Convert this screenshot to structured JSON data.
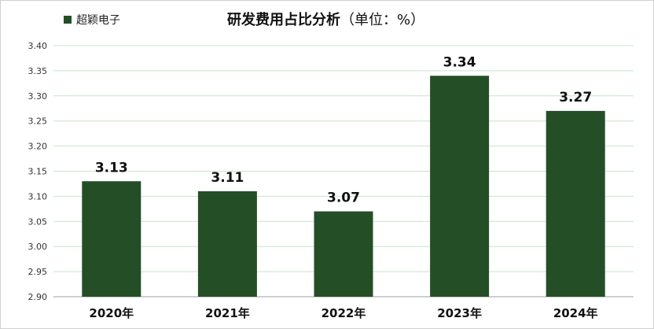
{
  "legend": {
    "label": "超颖电子",
    "color": "#244e26"
  },
  "chart_data": {
    "type": "bar",
    "title": "研发费用占比分析",
    "title_unit": "（单位：%）",
    "categories": [
      "2020年",
      "2021年",
      "2022年",
      "2023年",
      "2024年"
    ],
    "series": [
      {
        "name": "超颖电子",
        "values": [
          3.13,
          3.11,
          3.07,
          3.34,
          3.27
        ]
      }
    ],
    "data_labels": [
      "3.13",
      "3.11",
      "3.07",
      "3.34",
      "3.27"
    ],
    "ylim": [
      2.9,
      3.4
    ],
    "yticks": [
      "2.90",
      "2.95",
      "3.00",
      "3.05",
      "3.10",
      "3.15",
      "3.20",
      "3.25",
      "3.30",
      "3.35",
      "3.40"
    ],
    "grid": true,
    "legend_position": "top-left",
    "colors": {
      "bar": "#244e26",
      "grid": "#c8e6c9"
    }
  }
}
